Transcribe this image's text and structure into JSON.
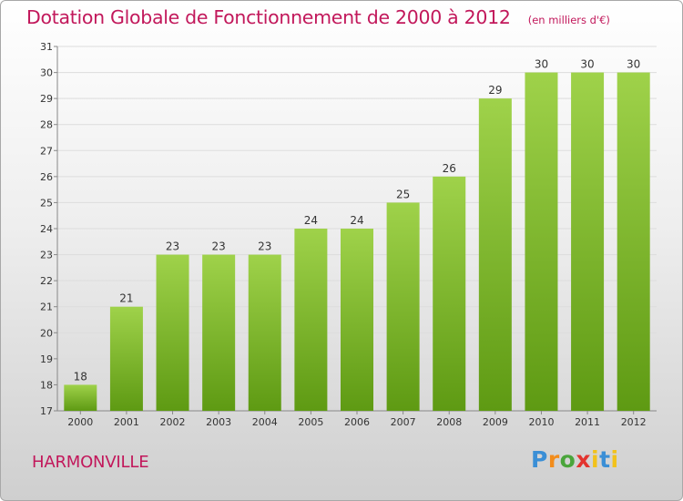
{
  "header": {
    "title": "Dotation Globale de Fonctionnement de 2000 à 2012",
    "subtitle": "(en milliers d'€)"
  },
  "footer": {
    "commune": "HARMONVILLE",
    "logo": "Proxiti"
  },
  "colors": {
    "title": "#c2185b",
    "bar_light": "#9fd24a",
    "bar_dark": "#5e9a13",
    "grid": "#dddddd",
    "logo_p": "#3b8fd6",
    "logo_r": "#f28c1b",
    "logo_o": "#4aa53b",
    "logo_x": "#e3342f",
    "logo_i": "#f2c21b",
    "logo_t": "#3b8fd6"
  },
  "chart_data": {
    "type": "bar",
    "title": "Dotation Globale de Fonctionnement de 2000 à 2012",
    "subtitle": "(en milliers d'€)",
    "categories": [
      "2000",
      "2001",
      "2002",
      "2003",
      "2004",
      "2005",
      "2006",
      "2007",
      "2008",
      "2009",
      "2010",
      "2011",
      "2012"
    ],
    "values": [
      18,
      21,
      23,
      23,
      23,
      24,
      24,
      25,
      26,
      29,
      30,
      30,
      30
    ],
    "ylim": [
      17,
      31
    ],
    "yticks": [
      17,
      18,
      19,
      20,
      21,
      22,
      23,
      24,
      25,
      26,
      27,
      28,
      29,
      30,
      31
    ],
    "xlabel": "",
    "ylabel": "",
    "grid": true,
    "data_labels": true
  }
}
